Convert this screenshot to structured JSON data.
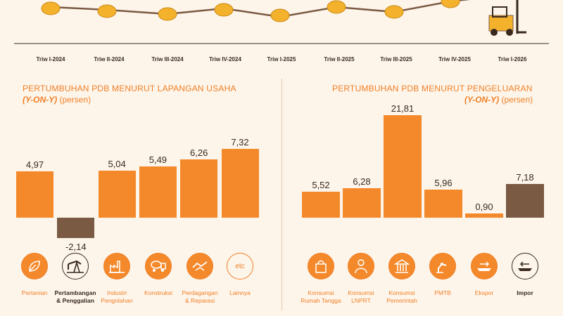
{
  "timeline": {
    "quarters": [
      "Triw I-2024",
      "Triw II-2024",
      "Triw III-2024",
      "Triw IV-2024",
      "Triw I-2025",
      "Triw II-2025",
      "Triw III-2025",
      "Triw IV-2025",
      "Triw I-2026"
    ]
  },
  "left_panel": {
    "title": "PERTUMBUHAN PDB MENURUT LAPANGAN USAHA",
    "subtitle_em": "(Y-ON-Y)",
    "subtitle_plain": " (persen)"
  },
  "right_panel": {
    "title": "PERTUMBUHAN PDB MENURUT PENGELUARAN",
    "subtitle_em": "(Y-ON-Y)",
    "subtitle_plain": " (persen)"
  },
  "chart_data": [
    {
      "type": "bar",
      "title": "PERTUMBUHAN PDB MENURUT LAPANGAN USAHA",
      "categories": [
        "Pertanian",
        "Pertambangan & Penggalian",
        "Industri Pengolahan",
        "Konstruksi",
        "Perdagangan & Reparasi",
        "Lainnya"
      ],
      "values": [
        4.97,
        -2.14,
        5.04,
        5.49,
        6.26,
        7.32
      ],
      "labels": [
        "4,97",
        "-2,14",
        "5,04",
        "5,49",
        "6,26",
        "7,32"
      ],
      "colors": [
        "#f4892b",
        "#7a5a43",
        "#f4892b",
        "#f4892b",
        "#f4892b",
        "#f4892b"
      ]
    },
    {
      "type": "bar",
      "title": "PERTUMBUHAN PDB MENURUT PENGELUARAN",
      "categories": [
        "Konsumsi Rumah Tangga",
        "Konsumsi LNPRT",
        "Konsumsi Pemerintah",
        "PMTB",
        "Ekspor",
        "Impor"
      ],
      "values": [
        5.52,
        6.28,
        21.81,
        5.96,
        0.9,
        7.18
      ],
      "labels": [
        "5,52",
        "6,28",
        "21,81",
        "5,96",
        "0,90",
        "7,18"
      ],
      "colors": [
        "#f4892b",
        "#f4892b",
        "#f4892b",
        "#f4892b",
        "#f4892b",
        "#7a5a43"
      ]
    }
  ],
  "left_categories": {
    "c0": [
      "Pertanian"
    ],
    "c1": [
      "Pertambangan",
      "& Penggalian"
    ],
    "c2": [
      "Industri",
      "Pengolahan"
    ],
    "c3": [
      "Konstruksi"
    ],
    "c4": [
      "Perdagangan",
      "& Reparasi"
    ],
    "c5": [
      "Lainnya"
    ],
    "etc": "etc"
  },
  "right_categories": {
    "c0": [
      "Konsumsi",
      "Rumah Tangga"
    ],
    "c1": [
      "Konsumsi",
      "LNPRT"
    ],
    "c2": [
      "Konsumsi",
      "Pemerintah"
    ],
    "c3": [
      "PMTB"
    ],
    "c4": [
      "Ekspor"
    ],
    "c5": [
      "Impor"
    ]
  },
  "icons": {
    "left": [
      "leaf-icon",
      "oil-pump-icon",
      "factory-icon",
      "cement-truck-icon",
      "handshake-icon",
      "etc-icon"
    ],
    "right": [
      "shopping-bag-icon",
      "person-icon",
      "government-building-icon",
      "robot-arm-icon",
      "export-ship-icon",
      "import-ship-icon"
    ]
  },
  "colors": {
    "accent": "#f4892b",
    "dark": "#7a5a43",
    "text": "#3a2a1e",
    "background": "#fdf5ea"
  }
}
